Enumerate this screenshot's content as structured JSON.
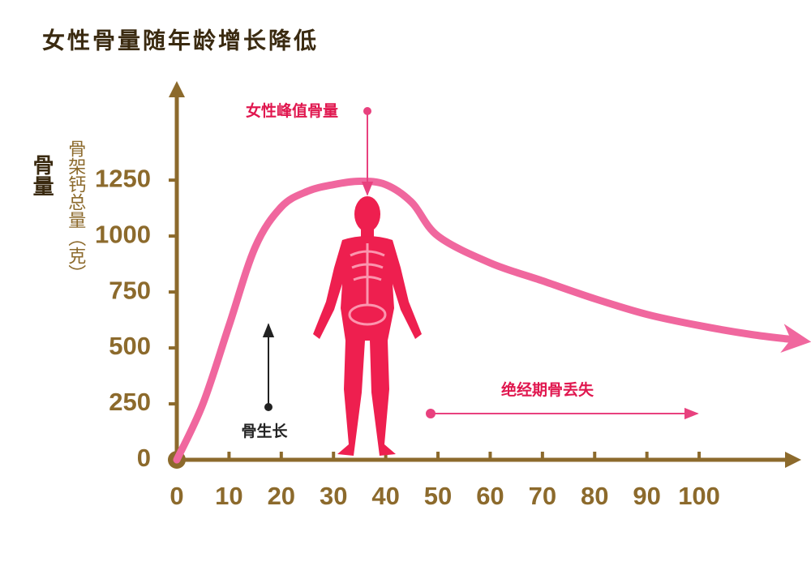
{
  "chart_data": {
    "type": "line",
    "title": "女性骨量随年龄增长降低",
    "y_label": "骨量",
    "y_sublabel": "骨架钙总量（克）",
    "x": [
      0,
      5,
      10,
      15,
      20,
      25,
      30,
      35,
      40,
      45,
      50,
      60,
      70,
      80,
      90,
      100,
      110,
      117
    ],
    "values": [
      0,
      250,
      600,
      950,
      1130,
      1200,
      1230,
      1245,
      1230,
      1150,
      1000,
      880,
      800,
      720,
      650,
      600,
      560,
      540
    ],
    "color": "#f0679e",
    "axis_color": "#8c6a2c",
    "xlim": [
      0,
      118
    ],
    "ylim": [
      0,
      1700
    ],
    "xticks": [
      0,
      10,
      20,
      30,
      40,
      50,
      60,
      70,
      80,
      90,
      100
    ],
    "yticks": [
      0,
      250,
      500,
      750,
      1000,
      1250
    ],
    "annotations": [
      {
        "text": "女性峰值骨量",
        "color": "#e0174f"
      },
      {
        "text": "骨生长",
        "color": "#222222"
      },
      {
        "text": "绝经期骨丢失",
        "color": "#e0174f"
      }
    ]
  }
}
